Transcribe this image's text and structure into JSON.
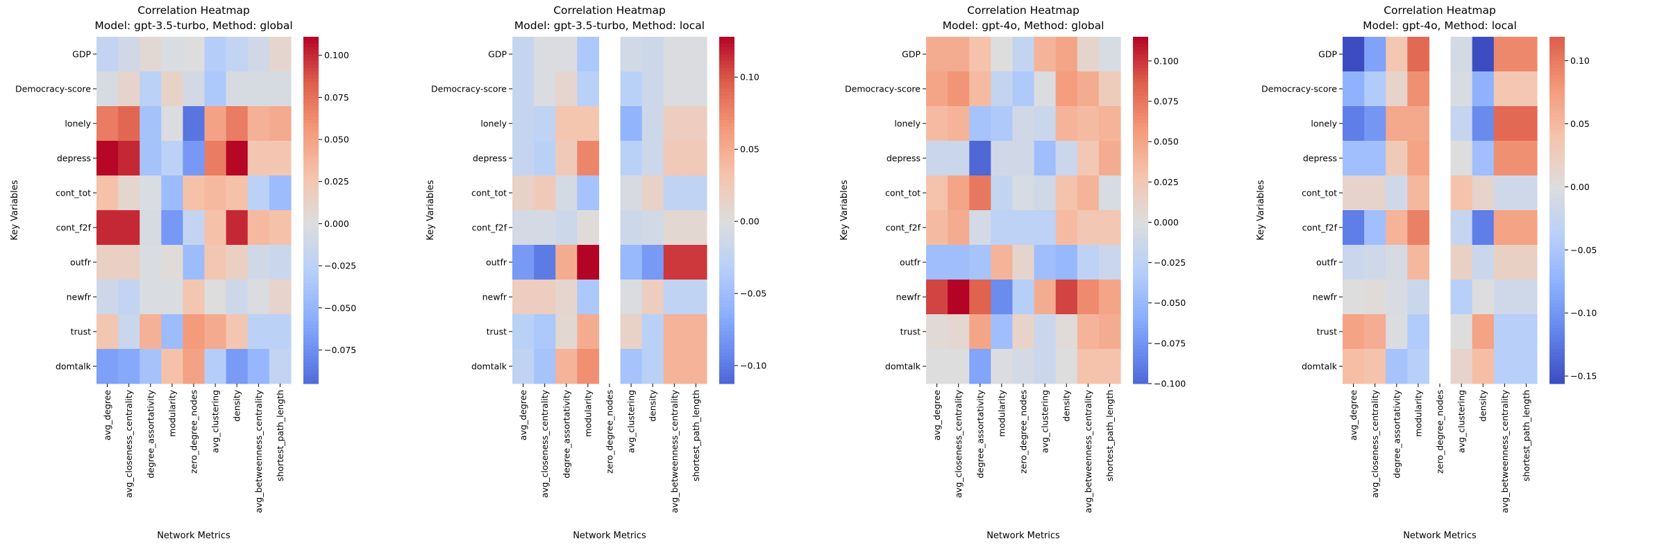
{
  "chart_data": [
    {
      "type": "heatmap",
      "title": "Correlation Heatmap\nModel: gpt-3.5-turbo, Method: global",
      "title_lines": [
        "Correlation Heatmap",
        "Model: gpt-3.5-turbo, Method: global"
      ],
      "xlabel": "Network Metrics",
      "ylabel": "Key Variables",
      "colormap": "coolwarm",
      "center": 0,
      "colorbar_range": [
        -0.095,
        0.111
      ],
      "colorbar_ticks": [
        "0.100",
        "0.075",
        "0.050",
        "0.025",
        "0.000",
        "−0.025",
        "−0.050",
        "−0.075"
      ],
      "colorbar_tick_values": [
        0.1,
        0.075,
        0.05,
        0.025,
        0,
        -0.025,
        -0.05,
        -0.075
      ],
      "values": [
        [
          -0.02,
          -0.01,
          0.005,
          -0.003,
          0.0,
          -0.03,
          -0.02,
          -0.01,
          0.008
        ],
        [
          -0.005,
          0.01,
          -0.025,
          0.012,
          -0.008,
          -0.035,
          -0.005,
          -0.005,
          -0.005
        ],
        [
          0.07,
          0.08,
          -0.04,
          -0.002,
          -0.09,
          0.05,
          0.07,
          0.04,
          0.045
        ],
        [
          0.11,
          0.1,
          -0.04,
          -0.025,
          -0.07,
          0.07,
          0.11,
          0.025,
          0.025
        ],
        [
          0.03,
          0.008,
          -0.003,
          -0.045,
          0.03,
          0.035,
          0.03,
          -0.025,
          -0.045
        ],
        [
          0.1,
          0.1,
          -0.005,
          -0.07,
          -0.02,
          0.03,
          0.1,
          0.035,
          0.03
        ],
        [
          0.015,
          0.015,
          -0.003,
          0.003,
          -0.045,
          0.025,
          0.015,
          -0.01,
          -0.015
        ],
        [
          -0.012,
          -0.02,
          -0.003,
          -0.003,
          0.025,
          0.0,
          -0.012,
          -0.002,
          0.01
        ],
        [
          0.025,
          -0.015,
          0.04,
          -0.045,
          0.055,
          0.045,
          0.025,
          -0.025,
          -0.025
        ],
        [
          -0.065,
          -0.06,
          -0.04,
          0.03,
          0.05,
          -0.03,
          -0.068,
          -0.05,
          -0.02
        ]
      ]
    },
    {
      "type": "heatmap",
      "title": "Correlation Heatmap\nModel: gpt-3.5-turbo, Method: local",
      "title_lines": [
        "Correlation Heatmap",
        "Model: gpt-3.5-turbo, Method: local"
      ],
      "xlabel": "Network Metrics",
      "ylabel": "Key Variables",
      "colormap": "coolwarm",
      "center": 0,
      "colorbar_range": [
        -0.1125,
        0.128
      ],
      "colorbar_ticks": [
        "0.10",
        "0.05",
        "0.00",
        "−0.05",
        "−0.10"
      ],
      "colorbar_tick_values": [
        0.1,
        0.05,
        0,
        -0.05,
        -0.1
      ],
      "values": [
        [
          -0.02,
          -0.002,
          -0.002,
          -0.04,
          null,
          -0.01,
          -0.015,
          -0.002,
          -0.002
        ],
        [
          -0.02,
          -0.002,
          0.01,
          -0.03,
          null,
          -0.03,
          -0.015,
          -0.002,
          -0.002
        ],
        [
          -0.02,
          -0.025,
          0.03,
          0.03,
          null,
          -0.06,
          -0.015,
          0.02,
          0.02
        ],
        [
          -0.02,
          -0.03,
          0.025,
          0.075,
          null,
          -0.03,
          -0.015,
          0.025,
          0.025
        ],
        [
          0.015,
          0.025,
          -0.008,
          -0.045,
          null,
          -0.005,
          0.015,
          -0.025,
          -0.025
        ],
        [
          -0.008,
          -0.008,
          -0.015,
          0.003,
          null,
          -0.015,
          -0.01,
          0.008,
          0.008
        ],
        [
          -0.08,
          -0.1,
          0.05,
          0.128,
          null,
          -0.055,
          -0.08,
          0.11,
          0.11
        ],
        [
          0.02,
          0.02,
          0.01,
          -0.04,
          null,
          -0.003,
          0.02,
          -0.025,
          -0.025
        ],
        [
          -0.03,
          -0.04,
          0.008,
          0.05,
          null,
          0.015,
          -0.03,
          0.045,
          0.045
        ],
        [
          -0.025,
          -0.045,
          0.045,
          0.07,
          null,
          -0.045,
          -0.03,
          0.045,
          0.045
        ]
      ]
    },
    {
      "type": "heatmap",
      "title": "Correlation Heatmap\nModel: gpt-4o, Method: global",
      "title_lines": [
        "Correlation Heatmap",
        "Model: gpt-4o, Method: global"
      ],
      "xlabel": "Network Metrics",
      "ylabel": "Key Variables",
      "colormap": "coolwarm",
      "center": 0,
      "colorbar_range": [
        -0.1,
        0.115
      ],
      "colorbar_ticks": [
        "0.100",
        "0.075",
        "0.050",
        "0.025",
        "0.000",
        "−0.025",
        "−0.050",
        "−0.075",
        "−0.100"
      ],
      "colorbar_tick_values": [
        0.1,
        0.075,
        0.05,
        0.025,
        0,
        -0.025,
        -0.05,
        -0.075,
        -0.1
      ],
      "values": [
        [
          0.045,
          0.045,
          0.03,
          0.0,
          -0.02,
          0.04,
          0.05,
          0.01,
          -0.005
        ],
        [
          0.05,
          0.06,
          0.035,
          -0.02,
          -0.035,
          -0.002,
          0.055,
          0.045,
          0.02
        ],
        [
          0.035,
          0.04,
          -0.04,
          -0.035,
          -0.01,
          -0.015,
          0.04,
          0.035,
          0.04
        ],
        [
          -0.015,
          -0.015,
          -0.1,
          -0.01,
          -0.01,
          -0.045,
          -0.015,
          0.025,
          0.045
        ],
        [
          0.03,
          0.05,
          0.075,
          -0.02,
          -0.005,
          -0.01,
          0.03,
          0.04,
          -0.005
        ],
        [
          0.035,
          0.045,
          -0.008,
          -0.025,
          -0.025,
          -0.025,
          0.035,
          0.025,
          0.025
        ],
        [
          -0.045,
          -0.045,
          -0.04,
          0.04,
          0.01,
          -0.045,
          -0.05,
          -0.025,
          -0.015
        ],
        [
          0.095,
          0.115,
          0.085,
          -0.08,
          -0.03,
          0.045,
          0.095,
          0.065,
          0.05
        ],
        [
          0.005,
          0.008,
          0.05,
          -0.045,
          0.012,
          -0.015,
          0.003,
          0.04,
          0.045
        ],
        [
          0.0,
          0.0,
          -0.065,
          -0.002,
          -0.008,
          -0.015,
          0.0,
          0.03,
          0.03
        ]
      ]
    },
    {
      "type": "heatmap",
      "title": "Correlation Heatmap\nModel: gpt-4o, Method: local",
      "title_lines": [
        "Correlation Heatmap",
        "Model: gpt-4o, Method: local"
      ],
      "xlabel": "Network Metrics",
      "ylabel": "Key Variables",
      "colormap": "coolwarm",
      "center": 0,
      "colorbar_range": [
        -0.156,
        0.119
      ],
      "colorbar_ticks": [
        "0.10",
        "0.05",
        "0.00",
        "−0.05",
        "−0.10",
        "−0.15"
      ],
      "colorbar_tick_values": [
        0.1,
        0.05,
        0,
        -0.05,
        -0.1,
        -0.15
      ],
      "values": [
        [
          -0.155,
          -0.09,
          0.035,
          0.11,
          null,
          -0.01,
          -0.155,
          0.09,
          0.09
        ],
        [
          -0.075,
          -0.045,
          0.015,
          0.085,
          null,
          -0.005,
          -0.075,
          0.035,
          0.035
        ],
        [
          -0.12,
          -0.1,
          0.065,
          0.065,
          null,
          -0.025,
          -0.11,
          0.11,
          0.11
        ],
        [
          -0.06,
          -0.06,
          0.03,
          0.07,
          null,
          0.0,
          -0.06,
          0.085,
          0.085
        ],
        [
          0.015,
          0.015,
          -0.015,
          0.05,
          null,
          0.04,
          0.015,
          -0.015,
          -0.015
        ],
        [
          -0.12,
          -0.06,
          0.055,
          0.095,
          null,
          -0.025,
          -0.12,
          0.07,
          0.07
        ],
        [
          -0.02,
          -0.015,
          -0.008,
          0.05,
          null,
          0.02,
          -0.02,
          0.02,
          0.02
        ],
        [
          0.0,
          0.003,
          -0.005,
          -0.02,
          null,
          -0.04,
          0.0,
          -0.015,
          -0.015
        ],
        [
          0.07,
          0.06,
          -0.003,
          -0.045,
          null,
          0.0,
          0.07,
          -0.04,
          -0.04
        ],
        [
          0.045,
          0.04,
          -0.055,
          -0.04,
          null,
          0.015,
          0.045,
          -0.04,
          -0.04
        ]
      ]
    }
  ],
  "rows": [
    "GDP",
    "Democracy-score",
    "lonely",
    "depress",
    "cont_tot",
    "cont_f2f",
    "outfr",
    "newfr",
    "trust",
    "domtalk"
  ],
  "columns": [
    "avg_degree",
    "avg_closeness_centrality",
    "degree_assortativity",
    "modularity",
    "zero_degree_nodes",
    "avg_clustering",
    "density",
    "avg_betweenness_centrality",
    "shortest_path_length"
  ]
}
